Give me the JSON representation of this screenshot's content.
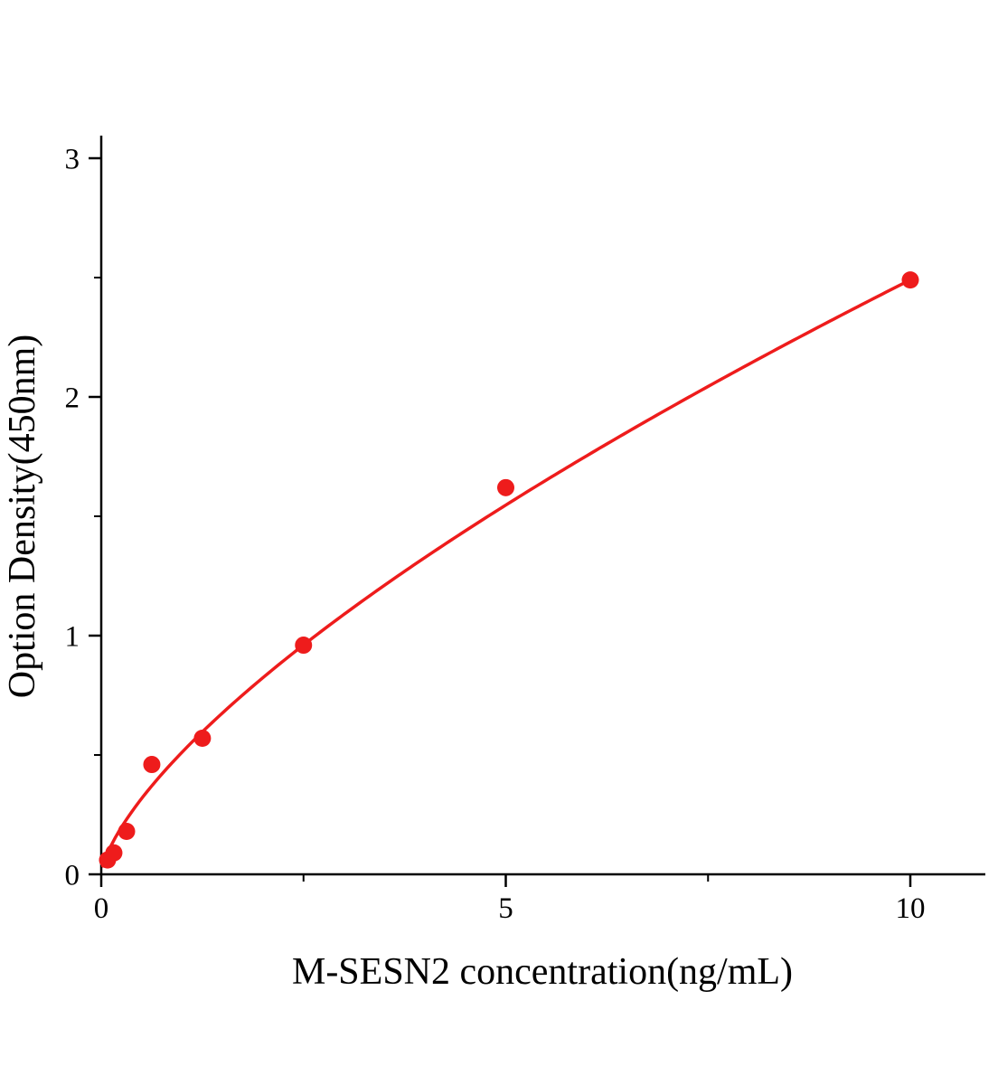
{
  "figure": {
    "background": "#ffffff"
  },
  "chart_data": {
    "type": "scatter",
    "title": "",
    "xlabel": "M-SESN2 concentration(ng/mL)",
    "ylabel": "Option Density(450nm)",
    "xlim": [
      0,
      10
    ],
    "ylim": [
      0,
      3
    ],
    "grid": false,
    "legend": "none",
    "x_major_ticks": [
      0,
      5,
      10
    ],
    "x_tick_labels": [
      "0",
      "5",
      "10"
    ],
    "x_minor_ticks": [
      2.5,
      7.5
    ],
    "y_major_ticks": [
      0,
      1,
      2,
      3
    ],
    "y_tick_labels": [
      "0",
      "1",
      "2",
      "3"
    ],
    "y_minor_ticks": [
      0.5,
      1.5,
      2.5
    ],
    "points": [
      {
        "x": 0.078,
        "y": 0.06
      },
      {
        "x": 0.156,
        "y": 0.09
      },
      {
        "x": 0.313,
        "y": 0.18
      },
      {
        "x": 0.625,
        "y": 0.46
      },
      {
        "x": 1.25,
        "y": 0.57
      },
      {
        "x": 2.5,
        "y": 0.96
      },
      {
        "x": 5,
        "y": 1.62
      },
      {
        "x": 10,
        "y": 2.49
      }
    ],
    "fit_curve": {
      "type": "power",
      "equation": "y = a * x^b",
      "a": 0.512,
      "b": 0.687,
      "x_start": 0.02,
      "x_end": 10
    },
    "marker_color": "#ee1c1c",
    "line_color": "#ee1c1c",
    "axis_color": "#000000"
  }
}
